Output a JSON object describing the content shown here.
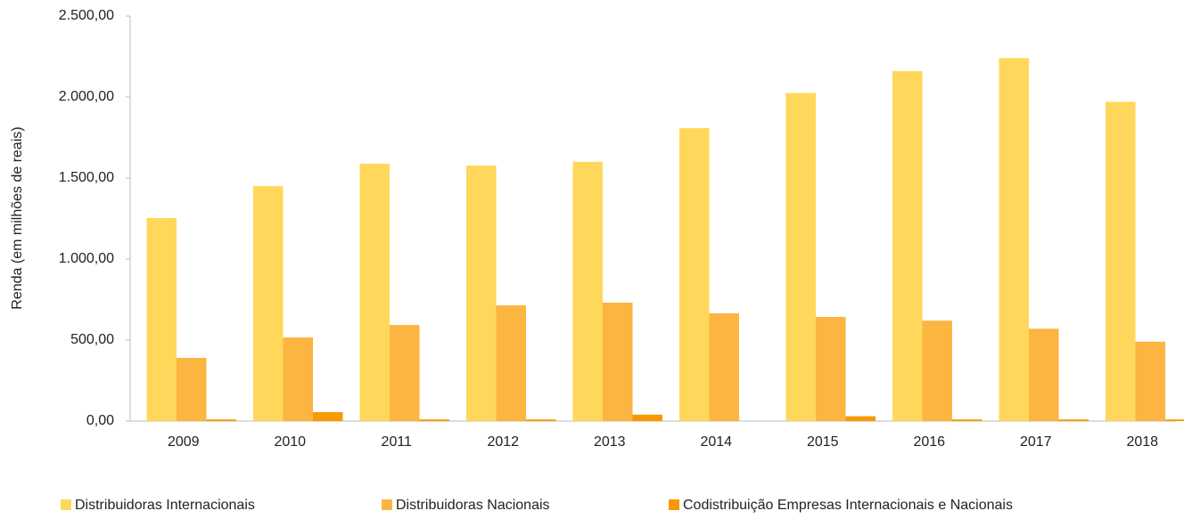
{
  "chart_data": {
    "type": "bar",
    "y_axis_label": "Renda (em milhões de reais)",
    "categories": [
      "2009",
      "2010",
      "2011",
      "2012",
      "2013",
      "2014",
      "2015",
      "2016",
      "2017",
      "2018"
    ],
    "series": [
      {
        "name": "Distribuidoras Internacionais",
        "color": "#ffd75a",
        "values": [
          1253,
          1450,
          1588,
          1577,
          1600,
          1808,
          2025,
          2160,
          2240,
          1970
        ]
      },
      {
        "name": "Distribuidoras Nacionais",
        "color": "#fbb540",
        "values": [
          390,
          516,
          593,
          714,
          731,
          665,
          643,
          620,
          570,
          490
        ]
      },
      {
        "name": "Codistribuição Empresas Internacionais e Nacionais",
        "color": "#f79a00",
        "values": [
          10,
          55,
          10,
          10,
          40,
          0,
          30,
          10,
          10,
          10
        ]
      }
    ],
    "ylim": [
      0,
      2500
    ],
    "yticks": [
      {
        "value": 0,
        "label": "0,00"
      },
      {
        "value": 500,
        "label": "500,00"
      },
      {
        "value": 1000,
        "label": "1.000,00"
      },
      {
        "value": 1500,
        "label": "1.500,00"
      },
      {
        "value": 2000,
        "label": "2.000,00"
      },
      {
        "value": 2500,
        "label": "2.500,00"
      }
    ],
    "legend": "bottom"
  }
}
